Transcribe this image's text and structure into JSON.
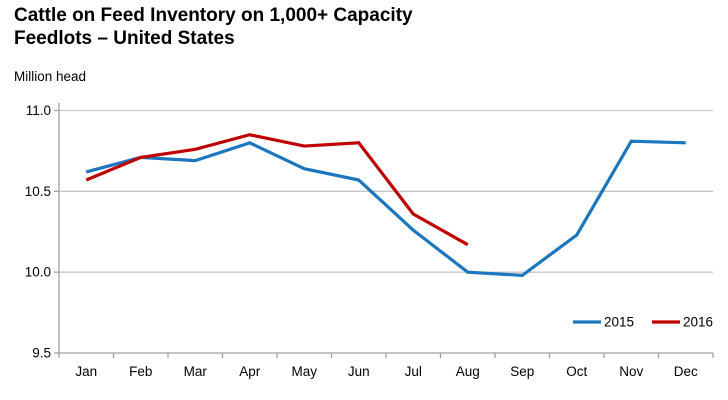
{
  "header": {
    "title": "Cattle on Feed Inventory on 1,000+ Capacity\nFeedlots – United States"
  },
  "colors": {
    "background": "#ffffff",
    "text": "#000000",
    "grid": "#c6c6c6",
    "axis": "#a0a0a0",
    "series_2015": "#1b76c0",
    "series_2016": "#c00000"
  },
  "chart_data": {
    "type": "line",
    "title": "Cattle on Feed Inventory on 1,000+ Capacity Feedlots – United States",
    "ylabel": "Million head",
    "xlabel": "",
    "categories": [
      "Jan",
      "Feb",
      "Mar",
      "Apr",
      "May",
      "Jun",
      "Jul",
      "Aug",
      "Sep",
      "Oct",
      "Nov",
      "Dec"
    ],
    "series": [
      {
        "name": "2015",
        "color": "#1b76c0",
        "values": [
          10.62,
          10.71,
          10.69,
          10.8,
          10.64,
          10.57,
          10.26,
          10.0,
          9.98,
          10.23,
          10.81,
          10.8
        ]
      },
      {
        "name": "2016",
        "color": "#c00000",
        "values": [
          10.57,
          10.71,
          10.76,
          10.85,
          10.78,
          10.8,
          10.36,
          10.17
        ]
      }
    ],
    "ylim": [
      9.5,
      11.0
    ],
    "yticks": [
      9.5,
      10.0,
      10.5,
      11.0
    ],
    "ytick_labels": [
      "9.5",
      "10.0",
      "10.5",
      "11.0"
    ],
    "grid": "horizontal",
    "legend_position": "inside-bottom-right"
  }
}
